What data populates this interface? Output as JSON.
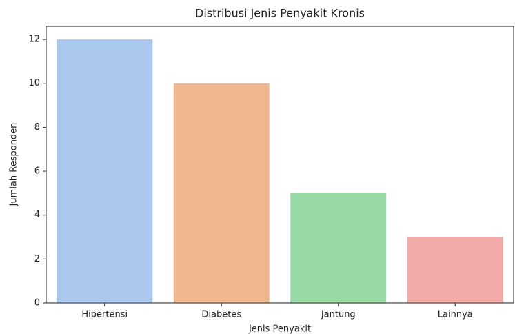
{
  "chart_data": {
    "type": "bar",
    "title": "Distribusi Jenis Penyakit Kronis",
    "x_label": "Jenis Penyakit",
    "y_label": "Jumlah Responden",
    "categories": [
      "Hipertensi",
      "Diabetes",
      "Jantung",
      "Lainnya"
    ],
    "values": [
      12,
      10,
      5,
      3
    ],
    "colors": [
      "#abc9ee",
      "#f0b891",
      "#98d9a6",
      "#f2aaa8"
    ],
    "ylim": [
      0,
      12.6
    ],
    "yticks": [
      0,
      2,
      4,
      6,
      8,
      10,
      12
    ],
    "grid": false
  }
}
